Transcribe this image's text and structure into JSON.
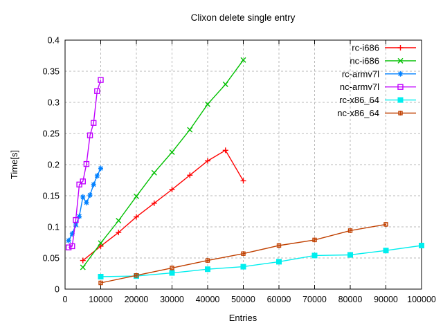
{
  "chart_data": {
    "type": "line",
    "title": "Clixon delete single entry",
    "xlabel": "Entries",
    "ylabel": "Time[s]",
    "xlim": [
      0,
      100000
    ],
    "ylim": [
      0,
      0.4
    ],
    "grid": true,
    "legend_position": "top-right-inside",
    "xticks": [
      0,
      10000,
      20000,
      30000,
      40000,
      50000,
      60000,
      70000,
      80000,
      90000,
      100000
    ],
    "xtick_labels": [
      "0",
      "10000",
      "20000",
      "30000",
      "40000",
      "50000",
      "60000",
      "70000",
      "80000",
      "90000",
      "100000"
    ],
    "yticks": [
      0,
      0.05,
      0.1,
      0.15,
      0.2,
      0.25,
      0.3,
      0.35,
      0.4
    ],
    "ytick_labels": [
      "0",
      "0.05",
      "0.1",
      "0.15",
      "0.2",
      "0.25",
      "0.3",
      "0.35",
      "0.4"
    ],
    "grid_color": "#b9b9b9",
    "axis_color": "#000000",
    "series": [
      {
        "name": "rc-i686",
        "color": "#ff0000",
        "marker": "plus",
        "x": [
          5000,
          10000,
          15000,
          20000,
          25000,
          30000,
          35000,
          40000,
          45000,
          50000
        ],
        "y": [
          0.046,
          0.069,
          0.091,
          0.116,
          0.138,
          0.16,
          0.183,
          0.206,
          0.223,
          0.174
        ]
      },
      {
        "name": "nc-i686",
        "color": "#00c000",
        "marker": "cross",
        "x": [
          5000,
          10000,
          15000,
          20000,
          25000,
          30000,
          35000,
          40000,
          45000,
          50000
        ],
        "y": [
          0.035,
          0.074,
          0.11,
          0.149,
          0.187,
          0.22,
          0.256,
          0.297,
          0.329,
          0.368
        ]
      },
      {
        "name": "rc-armv7l",
        "color": "#0080ff",
        "marker": "asterisk",
        "x": [
          1000,
          2000,
          3000,
          4000,
          5000,
          6000,
          7000,
          8000,
          9000,
          10000
        ],
        "y": [
          0.078,
          0.089,
          0.103,
          0.117,
          0.148,
          0.139,
          0.151,
          0.168,
          0.182,
          0.194
        ]
      },
      {
        "name": "nc-armv7l",
        "color": "#c000ff",
        "marker": "square-open",
        "x": [
          1000,
          2000,
          3000,
          4000,
          5000,
          6000,
          7000,
          8000,
          9000,
          10000
        ],
        "y": [
          0.067,
          0.069,
          0.111,
          0.168,
          0.173,
          0.201,
          0.247,
          0.267,
          0.318,
          0.336
        ]
      },
      {
        "name": "rc-x86_64",
        "color": "#00eeee",
        "marker": "square-filled",
        "x": [
          10000,
          20000,
          30000,
          40000,
          50000,
          60000,
          70000,
          80000,
          90000,
          100000
        ],
        "y": [
          0.02,
          0.021,
          0.026,
          0.032,
          0.036,
          0.044,
          0.054,
          0.055,
          0.062,
          0.07
        ]
      },
      {
        "name": "nc-x86_64",
        "color": "#c04000",
        "marker": "square-open-small",
        "x": [
          10000,
          20000,
          30000,
          40000,
          50000,
          60000,
          70000,
          80000,
          90000
        ],
        "y": [
          0.01,
          0.022,
          0.034,
          0.046,
          0.057,
          0.07,
          0.079,
          0.094,
          0.104
        ]
      }
    ]
  }
}
